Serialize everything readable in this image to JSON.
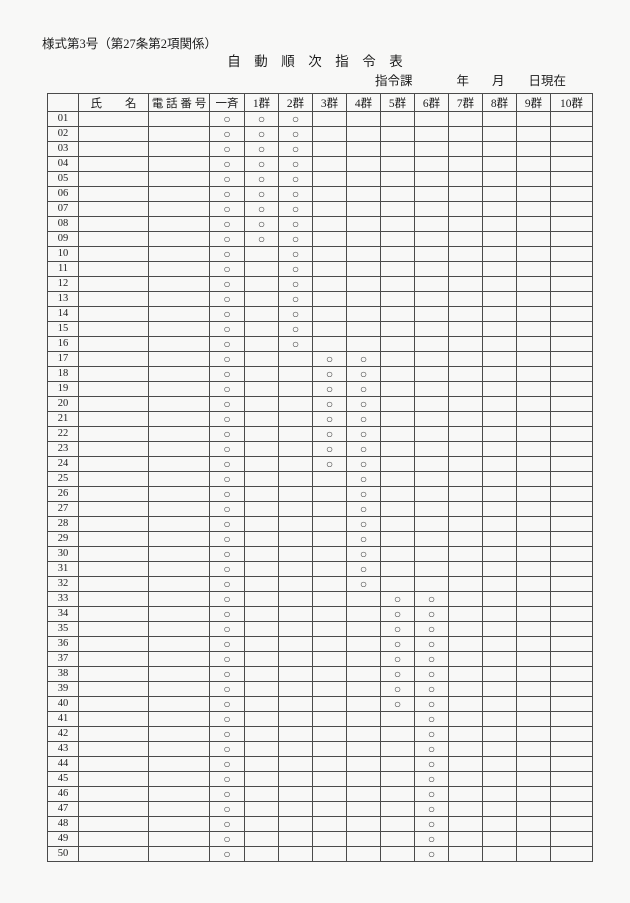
{
  "page": {
    "form_label": "様式第3号（第27条第2項関係）",
    "title": "自　動　順　次　指　令　表",
    "meta": {
      "section": "指令課",
      "year": "年",
      "month": "月",
      "day": "日現在"
    }
  },
  "table": {
    "mark": "○",
    "columns": [
      {
        "key": "no",
        "label": ""
      },
      {
        "key": "name",
        "label": "氏　　名"
      },
      {
        "key": "phone",
        "label": "電 話 番 号"
      },
      {
        "key": "all",
        "label": "一斉"
      },
      {
        "key": "g1",
        "label": "1群"
      },
      {
        "key": "g2",
        "label": "2群"
      },
      {
        "key": "g3",
        "label": "3群"
      },
      {
        "key": "g4",
        "label": "4群"
      },
      {
        "key": "g5",
        "label": "5群"
      },
      {
        "key": "g6",
        "label": "6群"
      },
      {
        "key": "g7",
        "label": "7群"
      },
      {
        "key": "g8",
        "label": "8群"
      },
      {
        "key": "g9",
        "label": "9群"
      },
      {
        "key": "g10",
        "label": "10群"
      }
    ],
    "rows": [
      {
        "no": "01",
        "name": "",
        "phone": "",
        "marks": [
          "all",
          "g1",
          "g2"
        ]
      },
      {
        "no": "02",
        "name": "",
        "phone": "",
        "marks": [
          "all",
          "g1",
          "g2"
        ]
      },
      {
        "no": "03",
        "name": "",
        "phone": "",
        "marks": [
          "all",
          "g1",
          "g2"
        ]
      },
      {
        "no": "04",
        "name": "",
        "phone": "",
        "marks": [
          "all",
          "g1",
          "g2"
        ]
      },
      {
        "no": "05",
        "name": "",
        "phone": "",
        "marks": [
          "all",
          "g1",
          "g2"
        ]
      },
      {
        "no": "06",
        "name": "",
        "phone": "",
        "marks": [
          "all",
          "g1",
          "g2"
        ]
      },
      {
        "no": "07",
        "name": "",
        "phone": "",
        "marks": [
          "all",
          "g1",
          "g2"
        ]
      },
      {
        "no": "08",
        "name": "",
        "phone": "",
        "marks": [
          "all",
          "g1",
          "g2"
        ]
      },
      {
        "no": "09",
        "name": "",
        "phone": "",
        "marks": [
          "all",
          "g1",
          "g2"
        ]
      },
      {
        "no": "10",
        "name": "",
        "phone": "",
        "marks": [
          "all",
          "g2"
        ]
      },
      {
        "no": "11",
        "name": "",
        "phone": "",
        "marks": [
          "all",
          "g2"
        ]
      },
      {
        "no": "12",
        "name": "",
        "phone": "",
        "marks": [
          "all",
          "g2"
        ]
      },
      {
        "no": "13",
        "name": "",
        "phone": "",
        "marks": [
          "all",
          "g2"
        ]
      },
      {
        "no": "14",
        "name": "",
        "phone": "",
        "marks": [
          "all",
          "g2"
        ]
      },
      {
        "no": "15",
        "name": "",
        "phone": "",
        "marks": [
          "all",
          "g2"
        ]
      },
      {
        "no": "16",
        "name": "",
        "phone": "",
        "marks": [
          "all",
          "g2"
        ]
      },
      {
        "no": "17",
        "name": "",
        "phone": "",
        "marks": [
          "all",
          "g3",
          "g4"
        ]
      },
      {
        "no": "18",
        "name": "",
        "phone": "",
        "marks": [
          "all",
          "g3",
          "g4"
        ]
      },
      {
        "no": "19",
        "name": "",
        "phone": "",
        "marks": [
          "all",
          "g3",
          "g4"
        ]
      },
      {
        "no": "20",
        "name": "",
        "phone": "",
        "marks": [
          "all",
          "g3",
          "g4"
        ]
      },
      {
        "no": "21",
        "name": "",
        "phone": "",
        "marks": [
          "all",
          "g3",
          "g4"
        ]
      },
      {
        "no": "22",
        "name": "",
        "phone": "",
        "marks": [
          "all",
          "g3",
          "g4"
        ]
      },
      {
        "no": "23",
        "name": "",
        "phone": "",
        "marks": [
          "all",
          "g3",
          "g4"
        ]
      },
      {
        "no": "24",
        "name": "",
        "phone": "",
        "marks": [
          "all",
          "g3",
          "g4"
        ]
      },
      {
        "no": "25",
        "name": "",
        "phone": "",
        "marks": [
          "all",
          "g4"
        ]
      },
      {
        "no": "26",
        "name": "",
        "phone": "",
        "marks": [
          "all",
          "g4"
        ]
      },
      {
        "no": "27",
        "name": "",
        "phone": "",
        "marks": [
          "all",
          "g4"
        ]
      },
      {
        "no": "28",
        "name": "",
        "phone": "",
        "marks": [
          "all",
          "g4"
        ]
      },
      {
        "no": "29",
        "name": "",
        "phone": "",
        "marks": [
          "all",
          "g4"
        ]
      },
      {
        "no": "30",
        "name": "",
        "phone": "",
        "marks": [
          "all",
          "g4"
        ]
      },
      {
        "no": "31",
        "name": "",
        "phone": "",
        "marks": [
          "all",
          "g4"
        ]
      },
      {
        "no": "32",
        "name": "",
        "phone": "",
        "marks": [
          "all",
          "g4"
        ]
      },
      {
        "no": "33",
        "name": "",
        "phone": "",
        "marks": [
          "all",
          "g5",
          "g6"
        ]
      },
      {
        "no": "34",
        "name": "",
        "phone": "",
        "marks": [
          "all",
          "g5",
          "g6"
        ]
      },
      {
        "no": "35",
        "name": "",
        "phone": "",
        "marks": [
          "all",
          "g5",
          "g6"
        ]
      },
      {
        "no": "36",
        "name": "",
        "phone": "",
        "marks": [
          "all",
          "g5",
          "g6"
        ]
      },
      {
        "no": "37",
        "name": "",
        "phone": "",
        "marks": [
          "all",
          "g5",
          "g6"
        ]
      },
      {
        "no": "38",
        "name": "",
        "phone": "",
        "marks": [
          "all",
          "g5",
          "g6"
        ]
      },
      {
        "no": "39",
        "name": "",
        "phone": "",
        "marks": [
          "all",
          "g5",
          "g6"
        ]
      },
      {
        "no": "40",
        "name": "",
        "phone": "",
        "marks": [
          "all",
          "g5",
          "g6"
        ]
      },
      {
        "no": "41",
        "name": "",
        "phone": "",
        "marks": [
          "all",
          "g6"
        ]
      },
      {
        "no": "42",
        "name": "",
        "phone": "",
        "marks": [
          "all",
          "g6"
        ]
      },
      {
        "no": "43",
        "name": "",
        "phone": "",
        "marks": [
          "all",
          "g6"
        ]
      },
      {
        "no": "44",
        "name": "",
        "phone": "",
        "marks": [
          "all",
          "g6"
        ]
      },
      {
        "no": "45",
        "name": "",
        "phone": "",
        "marks": [
          "all",
          "g6"
        ]
      },
      {
        "no": "46",
        "name": "",
        "phone": "",
        "marks": [
          "all",
          "g6"
        ]
      },
      {
        "no": "47",
        "name": "",
        "phone": "",
        "marks": [
          "all",
          "g6"
        ]
      },
      {
        "no": "48",
        "name": "",
        "phone": "",
        "marks": [
          "all",
          "g6"
        ]
      },
      {
        "no": "49",
        "name": "",
        "phone": "",
        "marks": [
          "all",
          "g6"
        ]
      },
      {
        "no": "50",
        "name": "",
        "phone": "",
        "marks": [
          "all",
          "g6"
        ]
      }
    ]
  }
}
